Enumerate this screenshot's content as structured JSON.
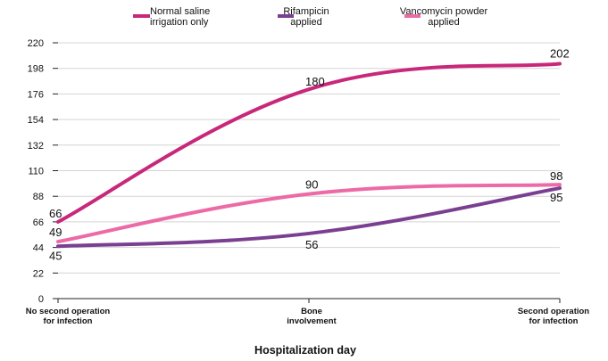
{
  "chart_data": {
    "type": "line",
    "title": "",
    "xlabel": "Hospitalization day",
    "ylabel": "",
    "categories": [
      [
        "No second operation",
        "for infection"
      ],
      [
        "Bone",
        "involvement"
      ],
      [
        "Second operation",
        "for infection"
      ]
    ],
    "yticks": [
      0,
      22,
      44,
      66,
      88,
      110,
      132,
      154,
      176,
      198,
      220
    ],
    "ylim": [
      0,
      220
    ],
    "grid": true,
    "legend_position": "top",
    "series": [
      {
        "name": [
          "Normal saline",
          "irrigation only"
        ],
        "color": "#c8287a",
        "values": [
          66,
          180,
          202
        ]
      },
      {
        "name": [
          "Rifampicin",
          "applied"
        ],
        "color": "#7a3f91",
        "values": [
          45,
          56,
          95
        ]
      },
      {
        "name": [
          "Vancomycin powder",
          "applied"
        ],
        "color": "#ec6aa6",
        "values": [
          49,
          90,
          98
        ]
      }
    ]
  }
}
